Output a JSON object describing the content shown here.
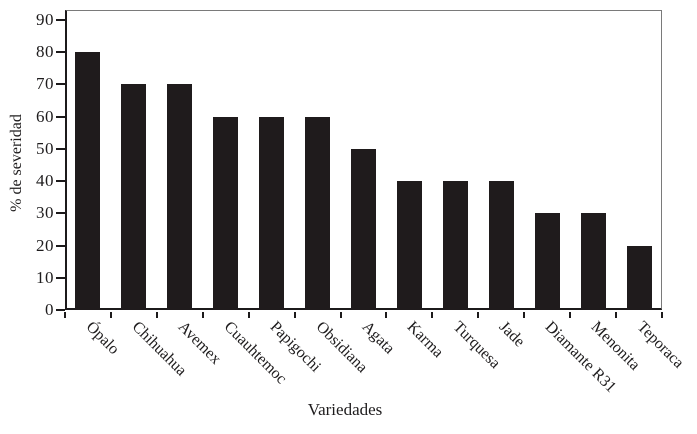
{
  "chart_data": {
    "type": "bar",
    "title": "",
    "xlabel": "Variedades",
    "ylabel": "% de severidad",
    "categories": [
      "Ópalo",
      "Chihuahua",
      "Avemex",
      "Cuauhtemoc",
      "Papigochi",
      "Obsidiana",
      "Agata",
      "Karma",
      "Turquesa",
      "Jade",
      "Diamante R31",
      "Menonita",
      "Teporaca"
    ],
    "values": [
      80,
      70,
      70,
      60,
      60,
      60,
      50,
      40,
      40,
      40,
      30,
      30,
      20
    ],
    "yticks": [
      0,
      10,
      20,
      30,
      40,
      50,
      60,
      70,
      80,
      90
    ],
    "ylim": [
      0,
      90
    ],
    "grid": false,
    "legend": null,
    "bar_color": "#1f1b1c",
    "axis_color": "#1c1a1b",
    "frame_color": "#7a7a7a",
    "text_color": "#1e1c1d"
  }
}
